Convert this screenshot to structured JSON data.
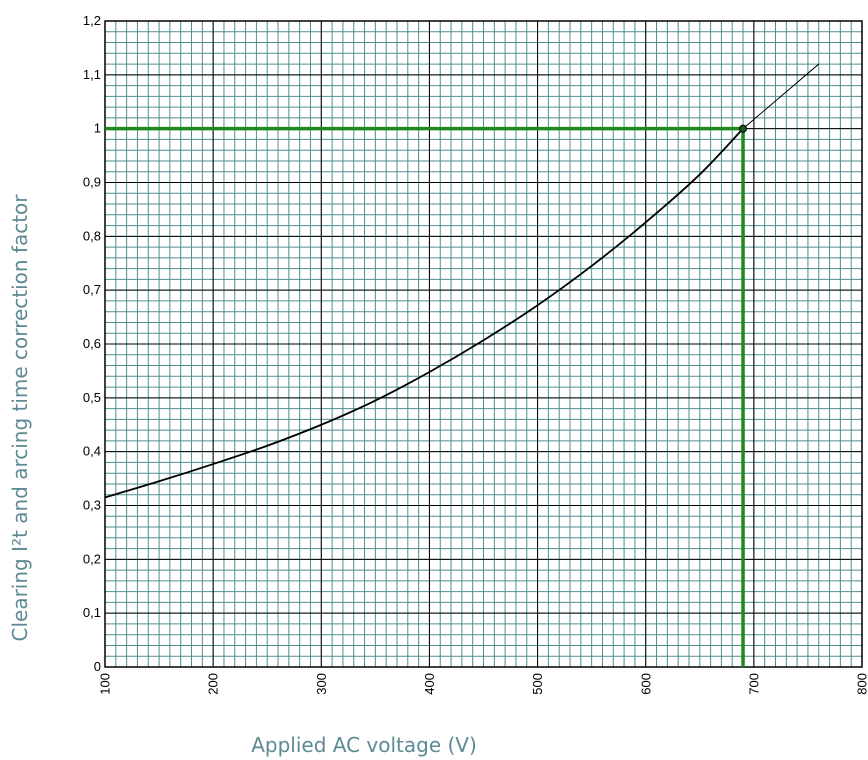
{
  "chart_data": {
    "type": "line",
    "title": "",
    "xlabel": "Applied AC voltage (V)",
    "ylabel": "Clearing I²t and arcing time correction factor",
    "xlim": [
      100,
      800
    ],
    "ylim": [
      0,
      1.2
    ],
    "x_ticks": [
      100,
      200,
      300,
      400,
      500,
      600,
      700,
      800
    ],
    "x_tick_labels": [
      "100",
      "200",
      "300",
      "400",
      "500",
      "600",
      "700",
      "800"
    ],
    "y_ticks": [
      0,
      0.1,
      0.2,
      0.3,
      0.4,
      0.5,
      0.6,
      0.7,
      0.8,
      0.9,
      1.0,
      1.1,
      1.2
    ],
    "y_tick_labels": [
      "0",
      "0,1",
      "0,2",
      "0,3",
      "0,4",
      "0,5",
      "0,6",
      "0,7",
      "0,8",
      "0,9",
      "1",
      "1,1",
      "1,2"
    ],
    "grid": true,
    "minor_grid": {
      "x_step": 10,
      "y_step": 0.02
    },
    "series": [
      {
        "x": [
          100,
          150,
          200,
          250,
          300,
          350,
          400,
          450,
          500,
          550,
          600,
          650,
          690
        ],
        "y": [
          0.315,
          0.345,
          0.377,
          0.411,
          0.45,
          0.495,
          0.548,
          0.607,
          0.672,
          0.745,
          0.826,
          0.915,
          1.0
        ],
        "color": "#000000"
      },
      {
        "x": [
          690,
          760
        ],
        "y": [
          1.0,
          1.12
        ],
        "color": "#000000",
        "style": "thin-extension"
      }
    ],
    "reference": {
      "x": 690,
      "y": 1.0,
      "color": "#1e8a1e"
    }
  },
  "colors": {
    "minor_grid": "#4e8e8e",
    "major_grid": "#000000",
    "axis_title": "#5d8a93"
  }
}
